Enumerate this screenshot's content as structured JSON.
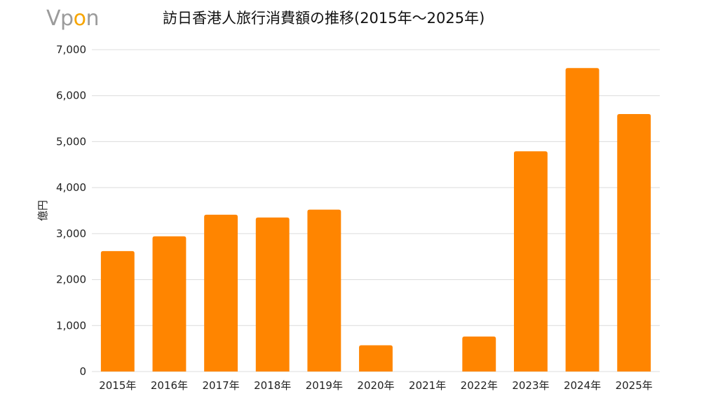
{
  "logo": {
    "text_before": "Vp",
    "text_accent": "o",
    "text_after": "n",
    "accent_color": "#f7a500",
    "text_color": "#9b9b9b"
  },
  "chart_data": {
    "type": "bar",
    "title": "訪日香港人旅行消費額の推移(2015年～2025年)",
    "xlabel": "",
    "ylabel": "億円",
    "categories": [
      "2015年",
      "2016年",
      "2017年",
      "2018年",
      "2019年",
      "2020年",
      "2021年",
      "2022年",
      "2023年",
      "2024年",
      "2025年"
    ],
    "values": [
      2620,
      2940,
      3410,
      3350,
      3520,
      570,
      0,
      760,
      4790,
      6600,
      5600
    ],
    "ylim": [
      0,
      7000
    ],
    "yticks": [
      0,
      1000,
      2000,
      3000,
      4000,
      5000,
      6000,
      7000
    ],
    "ytick_labels": [
      "0",
      "1,000",
      "2,000",
      "3,000",
      "4,000",
      "5,000",
      "6,000",
      "7,000"
    ],
    "bar_color": "#ff8500",
    "grid": true,
    "grid_color": "#dcdcdc",
    "legend": "none"
  }
}
